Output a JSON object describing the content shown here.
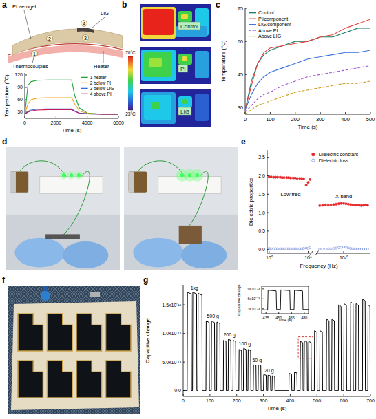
{
  "panel_labels": [
    "a",
    "b",
    "c",
    "d",
    "e",
    "f",
    "g"
  ],
  "diagram_a": {
    "labels": [
      "PI aerogel",
      "LIG",
      "Heater",
      "Thermocouples"
    ],
    "markers": [
      "1",
      "2",
      "3",
      "4"
    ]
  },
  "thermal_b": {
    "images": [
      "Control",
      "PI",
      "LIG"
    ],
    "colorbar": {
      "range": [
        23,
        70
      ],
      "ticks": [
        {
          "value": 70,
          "label": "70°C"
        },
        {
          "value": 23,
          "label": "23°C"
        }
      ]
    }
  },
  "chart_data": [
    {
      "type": "line",
      "xlabel": "Time (s)",
      "ylabel": "Temperature (°C)",
      "x": [
        0,
        200,
        400,
        800,
        1500,
        2500,
        3000,
        3200,
        3500,
        4000,
        5000,
        6000
      ],
      "xlim": [
        0,
        6000
      ],
      "xticks": [
        0,
        2000,
        4000,
        6000
      ],
      "ylim": [
        15,
        125
      ],
      "yticks": [
        30,
        60,
        90,
        120
      ],
      "legend": "upper-right",
      "series": [
        {
          "name": "1 heater",
          "color": "#1fa53a",
          "values": [
            25,
            95,
            104,
            107,
            108,
            108,
            108,
            70,
            40,
            28,
            25,
            25
          ]
        },
        {
          "name": "2 below PI",
          "color": "#f2a516",
          "values": [
            25,
            50,
            60,
            64,
            65,
            65,
            65,
            50,
            33,
            27,
            25,
            25
          ]
        },
        {
          "name": "3 below LIG",
          "color": "#2f6fe0",
          "values": [
            25,
            32,
            35,
            37,
            38,
            38,
            38,
            33,
            28,
            26,
            25,
            25
          ]
        },
        {
          "name": "4 above PI",
          "color": "#c2185b",
          "values": [
            25,
            30,
            33,
            35,
            36,
            36,
            36,
            32,
            27,
            26,
            25,
            25
          ]
        }
      ]
    },
    {
      "type": "line",
      "xlabel": "Time (s)",
      "ylabel": "Temperature (°C)",
      "x": [
        0,
        25,
        50,
        75,
        100,
        150,
        200,
        250,
        300,
        350,
        400,
        450,
        500
      ],
      "xlim": [
        0,
        500
      ],
      "xticks": [
        0,
        100,
        200,
        300,
        400,
        500
      ],
      "ylim": [
        27,
        75
      ],
      "yticks": [
        30,
        45,
        60,
        75
      ],
      "legend": "upper-left",
      "series": [
        {
          "name": "Control",
          "color": "#137a63",
          "line_style": "solid",
          "values": [
            29,
            42,
            50,
            54,
            56,
            58,
            60,
            60,
            62,
            62,
            64,
            66,
            66
          ]
        },
        {
          "name": "PI/component",
          "color": "#e8433a",
          "line_style": "solid",
          "values": [
            29,
            40,
            50,
            55,
            57,
            58,
            59,
            60,
            62,
            63,
            66,
            68,
            70
          ]
        },
        {
          "name": "LIG/component",
          "color": "#3a6fdc",
          "line_style": "solid",
          "values": [
            29,
            36,
            41,
            44,
            46,
            48,
            50,
            52,
            53,
            54,
            55,
            55,
            56
          ]
        },
        {
          "name": "Above PI",
          "color": "#a05ad0",
          "line_style": "dashed",
          "values": [
            28,
            31,
            34,
            36,
            37,
            40,
            42,
            44,
            45,
            46,
            47,
            48,
            49
          ]
        },
        {
          "name": "Above LIG",
          "color": "#c99a1e",
          "line_style": "dashed",
          "values": [
            27,
            29,
            31,
            32,
            33,
            35,
            37,
            38,
            39,
            40,
            41,
            41,
            42
          ]
        }
      ]
    },
    {
      "type": "scatter",
      "log": "x",
      "xlabel": "Frequency (Hz)",
      "ylabel": "Dielectric properties",
      "annotation": "Low freq",
      "legend": "upper-right",
      "x": [
        1,
        2,
        5,
        10,
        20,
        50,
        100,
        200,
        500,
        1000,
        2000,
        5000,
        10000,
        20000,
        50000,
        100000,
        200000,
        500000,
        1000000,
        2000000
      ],
      "xlim": [
        0.5,
        3000000
      ],
      "xticks": [
        {
          "value": 1,
          "label": "10⁰"
        },
        {
          "value": 1000000,
          "label": "10⁶"
        }
      ],
      "ylim": [
        -0.1,
        2.7
      ],
      "yticks": [
        {
          "value": 0,
          "label": "0.0"
        },
        0.5,
        {
          "value": 1,
          "label": "1.0"
        },
        1.5,
        {
          "value": 2,
          "label": "2.0"
        },
        2.5
      ],
      "series": [
        {
          "name": "Dielectric constant",
          "color": "#e8282b",
          "marker": "circle",
          "values": [
            1.97,
            1.97,
            1.96,
            1.96,
            1.96,
            1.96,
            1.95,
            1.95,
            1.95,
            1.95,
            1.94,
            1.94,
            1.94,
            1.93,
            1.93,
            1.93,
            1.92,
            1.75,
            1.82,
            1.9
          ]
        },
        {
          "name": "Dielectric loss",
          "color": "#7f96dc",
          "marker": "open-circle",
          "values": [
            0.03,
            0.02,
            0.02,
            0.02,
            0.02,
            0.02,
            0.02,
            0.02,
            0.02,
            0.02,
            0.02,
            0.02,
            0.02,
            0.02,
            0.02,
            0.02,
            0.03,
            0.04,
            0.03,
            0.05
          ]
        }
      ]
    },
    {
      "type": "scatter",
      "log": "x",
      "annotation": "X-band",
      "tick_labels": "x",
      "x": [
        8200000000.0,
        8400000000.0,
        8600000000.0,
        8800000000.0,
        9000000000.0,
        9200000000.0,
        9400000000.0,
        9600000000.0,
        9800000000.0,
        10000000000.0,
        10200000000.0,
        10400000000.0,
        10600000000.0,
        10800000000.0,
        11000000000.0,
        11200000000.0,
        11400000000.0,
        11600000000.0,
        11800000000.0,
        12000000000.0,
        12200000000.0
      ],
      "xlim": [
        8000000000.0,
        12500000000.0
      ],
      "xticks": [
        {
          "value": 10000000000.0,
          "label": "10¹⁰"
        }
      ],
      "ylim": [
        -0.1,
        2.7
      ],
      "series": [
        {
          "color": "#e8282b",
          "marker": "circle",
          "values": [
            1.19,
            1.2,
            1.21,
            1.2,
            1.21,
            1.22,
            1.23,
            1.24,
            1.25,
            1.25,
            1.24,
            1.23,
            1.22,
            1.21,
            1.2,
            1.21,
            1.2,
            1.19,
            1.2,
            1.21,
            1.2
          ]
        },
        {
          "color": "#7f96dc",
          "marker": "open-circle",
          "values": [
            0.01,
            0.01,
            0.01,
            0.02,
            0.02,
            0.03,
            0.04,
            0.05,
            0.06,
            0.07,
            0.06,
            0.04,
            0.03,
            0.02,
            0.02,
            0.01,
            0.01,
            0.01,
            0.01,
            0.01,
            0.01
          ]
        }
      ]
    },
    {
      "type": "line",
      "xlabel": "Time (s)",
      "ylabel": "Capacitive change",
      "xlim": [
        0,
        700
      ],
      "xticks": [
        0,
        100,
        200,
        300,
        400,
        500,
        600,
        700
      ],
      "ylim": [
        -1e-13,
        1.85e-12
      ],
      "yticks": [
        {
          "value": 0,
          "label": "0.0"
        },
        {
          "value": 5e-13,
          "label": "5.0x10⁻¹³"
        },
        {
          "value": 1e-12,
          "label": "1.0x10⁻¹²"
        },
        {
          "value": 1.5e-12,
          "label": "1.5x10⁻¹²"
        }
      ],
      "annotations": [
        {
          "text": "1kg",
          "x": 42
        },
        {
          "text": "500 g",
          "x": 111
        },
        {
          "text": "200 g",
          "x": 173
        },
        {
          "text": "100 g",
          "x": 230
        },
        {
          "text": "50 g",
          "x": 276
        },
        {
          "text": "20 g",
          "x": 321
        }
      ],
      "x": [
        0,
        15,
        16,
        30,
        31,
        35,
        36,
        50,
        51,
        55,
        56,
        70,
        71,
        85,
        86,
        97,
        98,
        105,
        106,
        117,
        118,
        125,
        126,
        137,
        138,
        150,
        151,
        160,
        161,
        168,
        169,
        178,
        179,
        186,
        187,
        196,
        197,
        208,
        209,
        218,
        219,
        225,
        226,
        235,
        236,
        242,
        243,
        252,
        253,
        262,
        263,
        272,
        273,
        280,
        281,
        290,
        291,
        300,
        301,
        310,
        311,
        316,
        317,
        326,
        327,
        332,
        333,
        342,
        343,
        395,
        396,
        405,
        406,
        415,
        416,
        425,
        426,
        437,
        438,
        447,
        448,
        452,
        453,
        463,
        464,
        468,
        469,
        478,
        479,
        490,
        491,
        500,
        501,
        510,
        511,
        520,
        521,
        535,
        536,
        545,
        546,
        555,
        556,
        565,
        566,
        580,
        581,
        590,
        591,
        600,
        601,
        610,
        611,
        625,
        626,
        635,
        636,
        645,
        646,
        655,
        656,
        670,
        671,
        680,
        681,
        690,
        691,
        698,
        699,
        700
      ],
      "series": [
        {
          "color": "#000000",
          "values": [
            0,
            0,
            1.72e-12,
            1.69e-12,
            0,
            0,
            1.72e-12,
            1.69e-12,
            0,
            0,
            1.7e-12,
            1.67e-12,
            0,
            0,
            1.22e-12,
            1.19e-12,
            0,
            0,
            1.22e-12,
            1.19e-12,
            0,
            0,
            1.2e-12,
            1.17e-12,
            0,
            0,
            8.8e-13,
            8.6e-13,
            0,
            0,
            9e-13,
            8.8e-13,
            0,
            0,
            8.8e-13,
            8.6e-13,
            0,
            0,
            7.2e-13,
            7e-13,
            0,
            0,
            7.4e-13,
            7.2e-13,
            0,
            0,
            7.2e-13,
            7e-13,
            0,
            0,
            4.5e-13,
            4.4e-13,
            0,
            0,
            4.5e-13,
            4.4e-13,
            0,
            0,
            2.8e-13,
            2.7e-13,
            0,
            0,
            2.7e-13,
            2.6e-13,
            0,
            0,
            2.6e-13,
            2.5e-13,
            0,
            0,
            3e-13,
            2.9e-13,
            0,
            0,
            3.2e-13,
            3.1e-13,
            0,
            0,
            8.6e-13,
            8.4e-13,
            0,
            0,
            8.7e-13,
            8.5e-13,
            0,
            0,
            8.6e-13,
            8.4e-13,
            0,
            0,
            1.05e-12,
            1.02e-12,
            0,
            0,
            1.05e-12,
            1.02e-12,
            0,
            0,
            1.25e-12,
            1.22e-12,
            0,
            0,
            1.25e-12,
            1.22e-12,
            0,
            0,
            1.5e-12,
            1.47e-12,
            0,
            0,
            1.52e-12,
            1.49e-12,
            0,
            0,
            1.55e-12,
            1.52e-12,
            0,
            0,
            1.52e-12,
            1.49e-12,
            0,
            0,
            1.6e-12,
            1.57e-12,
            0,
            0,
            1.5e-12,
            1.47e-12,
            0,
            0
          ]
        }
      ]
    },
    {
      "type": "line",
      "xlabel": "Time (s)",
      "ylabel": "Capacitive change",
      "xlim": [
        430,
        485
      ],
      "xticks": [
        435,
        450,
        465,
        480
      ],
      "ylim": [
        1.5e-13,
        9.8e-13
      ],
      "yticks": [
        {
          "value": 3e-13,
          "label": "3x10⁻¹³"
        },
        {
          "value": 6e-13,
          "label": "6x10⁻¹³"
        },
        {
          "value": 9e-13,
          "label": "9x10⁻¹³"
        }
      ],
      "x": [
        430,
        437,
        437.5,
        447,
        447.5,
        452,
        452.5,
        463,
        463.5,
        468,
        468.5,
        478,
        478.5,
        485
      ],
      "series": [
        {
          "color": "#000000",
          "values": [
            2.7e-13,
            2.7e-13,
            8.6e-13,
            8.4e-13,
            2.8e-13,
            2.8e-13,
            8.7e-13,
            8.5e-13,
            2.8e-13,
            2.8e-13,
            8.6e-13,
            8.4e-13,
            2.8e-13,
            2.8e-13
          ]
        }
      ]
    }
  ]
}
